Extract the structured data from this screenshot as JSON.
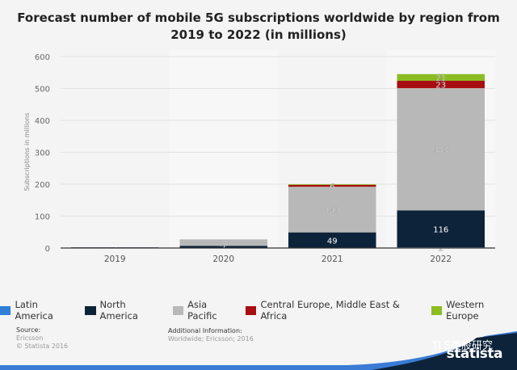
{
  "chart_data": {
    "type": "bar",
    "stacked": true,
    "title": "Forecast number of mobile 5G subscriptions worldwide by region from 2019 to 2022 (in millions)",
    "xlabel": "",
    "ylabel": "Subscriptions in millions",
    "ylim": [
      0,
      600
    ],
    "yticks": [
      0,
      100,
      200,
      300,
      400,
      500,
      600
    ],
    "grid": true,
    "legend_position": "bottom",
    "categories": [
      "2019",
      "2020",
      "2021",
      "2022"
    ],
    "series": [
      {
        "name": "Latin America",
        "color": "#2f7ed8",
        "values": [
          0,
          0,
          0,
          2
        ],
        "labels": [
          "",
          "",
          "",
          "2"
        ]
      },
      {
        "name": "North America",
        "color": "#0d233a",
        "values": [
          2,
          7,
          49,
          116
        ],
        "labels": [
          "2",
          "7",
          "49",
          "116"
        ]
      },
      {
        "name": "Asia Pacific",
        "color": "#b8b8b8",
        "values": [
          0,
          20,
          143,
          383
        ],
        "labels": [
          "",
          "20",
          "143",
          "383"
        ]
      },
      {
        "name": "Central Europe, Middle East & Africa",
        "color": "#a80d12",
        "values": [
          0,
          0,
          6,
          23
        ],
        "labels": [
          "",
          "",
          "6",
          "23"
        ]
      },
      {
        "name": "Western Europe",
        "color": "#8bbc21",
        "values": [
          0,
          0,
          2,
          21
        ],
        "labels": [
          "",
          "",
          "",
          "21"
        ]
      }
    ]
  },
  "footer": {
    "source_label": "Source:",
    "source_value": "Ericsson",
    "copyright": "© Statista 2016",
    "additional_label": "Additional Information:",
    "additional_value": "Worldwide; Ericsson; 2016"
  },
  "brand": {
    "name": "statista",
    "watermark": "TLS美股研究"
  }
}
